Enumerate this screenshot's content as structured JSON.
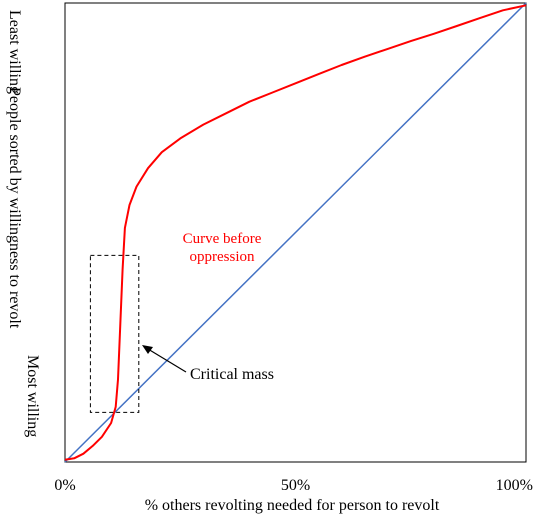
{
  "chart_data": {
    "type": "line",
    "ylabel": "People sorted by willingness to revolt",
    "ylabel_top": "Least willing",
    "ylabel_bottom": "Most willing",
    "xlabel": "% others revolting needed for person to revolt",
    "xlim": [
      0,
      100
    ],
    "ylim": [
      0,
      100
    ],
    "x_ticks": [
      {
        "value": 0,
        "label": "0%"
      },
      {
        "value": 50,
        "label": "50%"
      },
      {
        "value": 100,
        "label": "100%"
      }
    ],
    "grid": false,
    "series": [
      {
        "color": "#4472c4",
        "x": [
          0,
          100
        ],
        "y": [
          0,
          100
        ]
      },
      {
        "color": "#ff0000",
        "x": [
          0,
          2,
          4,
          6,
          8,
          10,
          11,
          11.5,
          12,
          12.5,
          13,
          14,
          15.5,
          18,
          21,
          25,
          30,
          35,
          40,
          45,
          50,
          55,
          60,
          65,
          70,
          75,
          80,
          85,
          90,
          95,
          100
        ],
        "y": [
          0.5,
          0.8,
          1.8,
          3.5,
          5.5,
          8.5,
          12,
          18,
          30,
          42,
          51,
          56,
          60,
          64,
          67.5,
          70.5,
          73.5,
          76,
          78.5,
          80.5,
          82.5,
          84.5,
          86.5,
          88.3,
          90,
          91.7,
          93.3,
          95,
          96.7,
          98.4,
          99.5
        ]
      }
    ],
    "annotations": {
      "curve_label_line1": "Curve before",
      "curve_label_line2": "oppression",
      "curve_label_color": "#ff0000",
      "critical_mass_label": "Critical mass",
      "critical_mass_box": {
        "x": [
          5.5,
          16
        ],
        "y": [
          10.8,
          45
        ]
      }
    }
  }
}
